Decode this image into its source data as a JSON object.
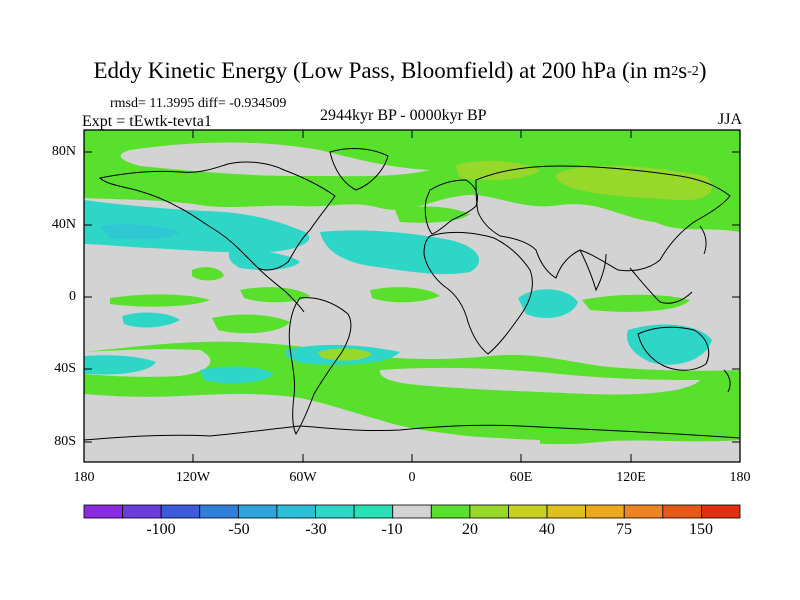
{
  "title": {
    "main": "Eddy Kinetic Energy (Low Pass, Bloomfield) at 200 hPa (in m",
    "sup1": "2",
    "mid": "s",
    "sup2": "-2",
    "end": ")"
  },
  "stats": "rmsd= 11.3995 diff= -0.934509",
  "expt": "Expt = tEwtk-tevta1",
  "period": "2944kyr BP - 0000kyr BP",
  "season": "JJA",
  "axes": {
    "lat_ticks": [
      "80N",
      "40N",
      "0",
      "40S",
      "80S"
    ],
    "lon_ticks": [
      "180",
      "120W",
      "60W",
      "0",
      "60E",
      "120E",
      "180"
    ]
  },
  "colorbar": {
    "colors": [
      "#8a2be2",
      "#6a3cdc",
      "#3c5adc",
      "#2f7fdc",
      "#2ea3dc",
      "#2ebfd8",
      "#2ed6c8",
      "#28e0b4",
      "#d3d3d3",
      "#58e02c",
      "#98d82a",
      "#c8d020",
      "#e0c020",
      "#eea820",
      "#ee8420",
      "#e65a18",
      "#e03010"
    ],
    "labels": [
      "-100",
      "-50",
      "-30",
      "-10",
      "20",
      "40",
      "75",
      "150"
    ]
  },
  "colors": {
    "neutral": "#d3d3d3",
    "green": "#58e02c",
    "yellow_green": "#98d82a",
    "cyan": "#2ed6c8",
    "light_cyan": "#28e0b4"
  }
}
